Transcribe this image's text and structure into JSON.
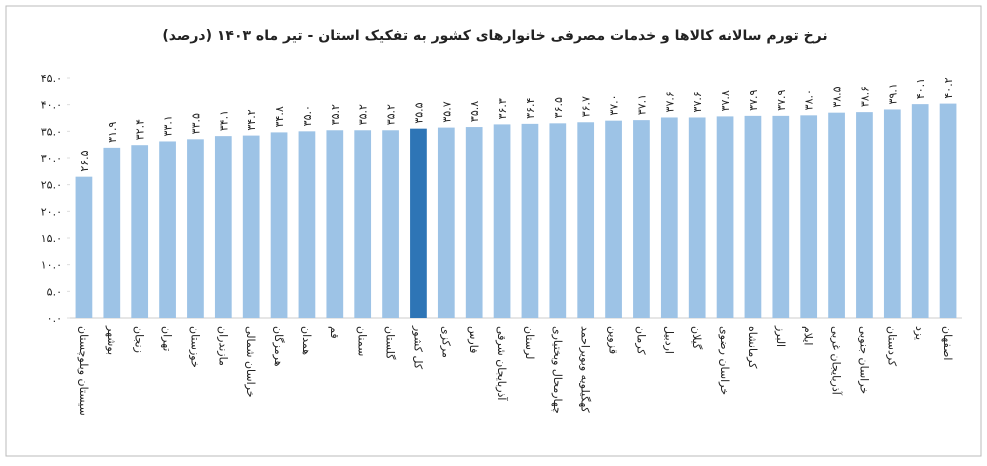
{
  "chart_data": {
    "type": "bar",
    "title": "نرخ تورم سالانه کالاها و خدمات مصرفی خانوارهای کشور به تفکیک استان - تیر ماه ۱۴۰۳ (درصد)",
    "categories": [
      "سیستان وبلوچستان",
      "بوشهر",
      "زنجان",
      "تهران",
      "خوزستان",
      "مازندران",
      "خراسان شمالی",
      "هرمزگان",
      "همدان",
      "قم",
      "سمنان",
      "گلستان",
      "کل کشور",
      "مرکزی",
      "فارس",
      "آذربایجان شرقی",
      "لرستان",
      "چهارمحال وبختیاری",
      "کهگیلویه وبویراحمد",
      "قزوین",
      "کرمان",
      "اردبیل",
      "گیلان",
      "خراسان رضوی",
      "کرمانشاه",
      "البرز",
      "ایلام",
      "آذربایجان غربی",
      "خراسان جنوبی",
      "کردستان",
      "یزد",
      "اصفهان"
    ],
    "values": [
      26.5,
      31.9,
      32.4,
      33.1,
      33.5,
      34.1,
      34.2,
      34.8,
      35.0,
      35.2,
      35.2,
      35.2,
      35.5,
      35.7,
      35.8,
      36.3,
      36.4,
      36.5,
      36.7,
      37.0,
      37.1,
      37.6,
      37.6,
      37.8,
      37.9,
      37.9,
      38.0,
      38.5,
      38.6,
      39.1,
      40.1,
      40.2
    ],
    "value_labels": [
      "۲۶.۵",
      "۳۱.۹",
      "۳۲.۴",
      "۳۳.۱",
      "۳۳.۵",
      "۳۴.۱",
      "۳۴.۲",
      "۳۴.۸",
      "۳۵.۰",
      "۳۵.۲",
      "۳۵.۲",
      "۳۵.۲",
      "۳۵.۵",
      "۳۵.۷",
      "۳۵.۸",
      "۳۶.۳",
      "۳۶.۴",
      "۳۶.۵",
      "۳۶.۷",
      "۳۷.۰",
      "۳۷.۱",
      "۳۷.۶",
      "۳۷.۶",
      "۳۷.۸",
      "۳۷.۹",
      "۳۷.۹",
      "۳۸.۰",
      "۳۸.۵",
      "۳۸.۶",
      "۳۹.۱",
      "۴۰.۱",
      "۴۰.۲"
    ],
    "colors": [
      "#9dc3e6",
      "#9dc3e6",
      "#9dc3e6",
      "#9dc3e6",
      "#9dc3e6",
      "#9dc3e6",
      "#9dc3e6",
      "#9dc3e6",
      "#9dc3e6",
      "#9dc3e6",
      "#9dc3e6",
      "#9dc3e6",
      "#2e75b6",
      "#9dc3e6",
      "#9dc3e6",
      "#9dc3e6",
      "#9dc3e6",
      "#9dc3e6",
      "#9dc3e6",
      "#9dc3e6",
      "#9dc3e6",
      "#9dc3e6",
      "#9dc3e6",
      "#9dc3e6",
      "#9dc3e6",
      "#9dc3e6",
      "#9dc3e6",
      "#9dc3e6",
      "#9dc3e6",
      "#9dc3e6",
      "#9dc3e6",
      "#9dc3e6"
    ],
    "ylim": [
      0,
      45
    ],
    "yticks": [
      {
        "value": 0,
        "label": "۰.۰"
      },
      {
        "value": 5,
        "label": "۵.۰"
      },
      {
        "value": 10,
        "label": "۱۰.۰"
      },
      {
        "value": 15,
        "label": "۱۵.۰"
      },
      {
        "value": 20,
        "label": "۲۰.۰"
      },
      {
        "value": 25,
        "label": "۲۵.۰"
      },
      {
        "value": 30,
        "label": "۳۰.۰"
      },
      {
        "value": 35,
        "label": "۳۵.۰"
      },
      {
        "value": 40,
        "label": "۴۰.۰"
      },
      {
        "value": 45,
        "label": "۴۵.۰"
      }
    ],
    "grid": false
  }
}
